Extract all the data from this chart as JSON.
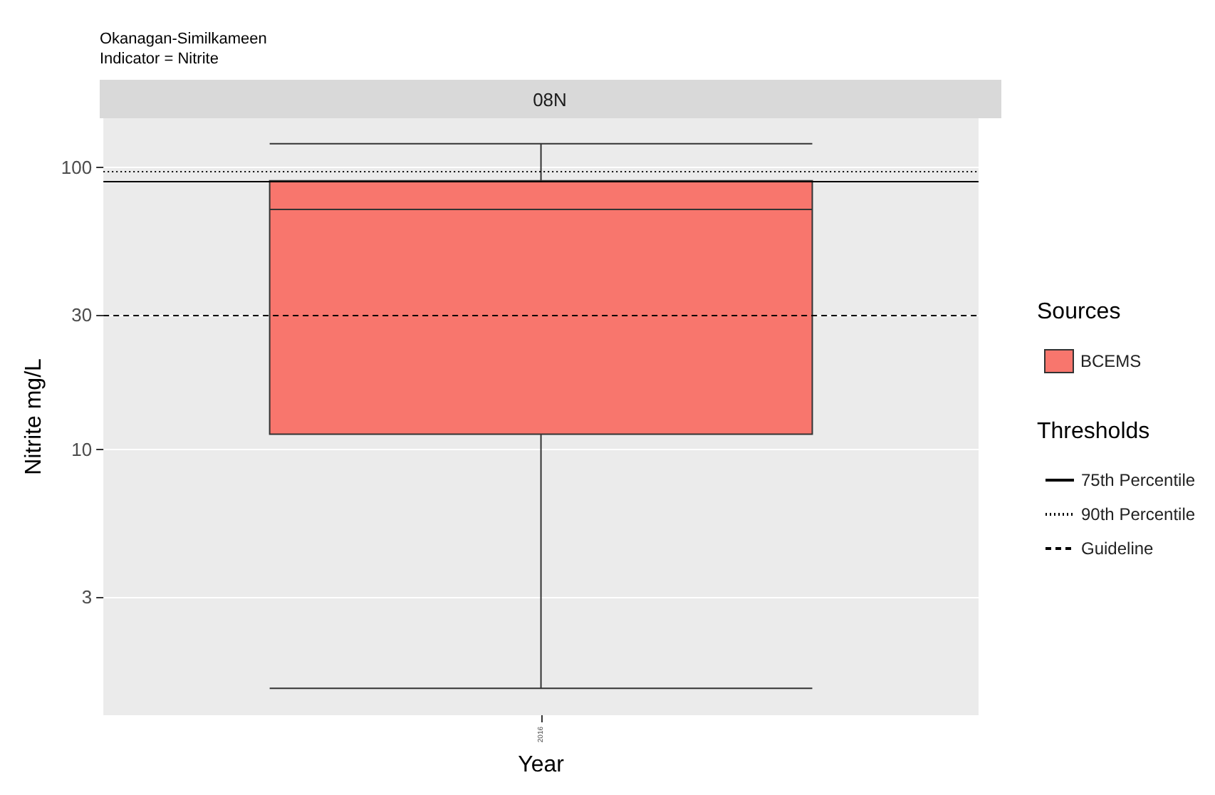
{
  "chart_data": {
    "type": "box",
    "title": "Okanagan-Similkameen",
    "subtitle": "Indicator = Nitrite",
    "xlabel": "Year",
    "ylabel": "Nitrite mg/L",
    "legend_title": "Sources",
    "annotations": [
      "08N",
      "Thresholds"
    ],
    "categories": [
      "2016"
    ],
    "series": [
      {
        "name": "BCEMS",
        "color": "#f8766d",
        "boxes": [
          {
            "low": 1.42,
            "q1": 11.3,
            "median": 70.8,
            "q3": 89.5,
            "high": 121
          }
        ]
      }
    ],
    "ylim": [
      1.14,
      149
    ],
    "yticks": [
      3,
      10,
      30,
      100
    ],
    "log": true,
    "grid": "y",
    "legend": "right",
    "ref_lines": [
      {
        "axis": "y",
        "value": 89.5,
        "label": "75th Percentile",
        "line_style": "solid",
        "color": "#000000"
      },
      {
        "axis": "y",
        "value": 96.7,
        "label": "90th Percentile",
        "line_style": "dotted",
        "color": "#000000"
      },
      {
        "axis": "y",
        "value": 30,
        "label": "Guideline",
        "line_style": "dashed",
        "color": "#000000"
      }
    ]
  }
}
